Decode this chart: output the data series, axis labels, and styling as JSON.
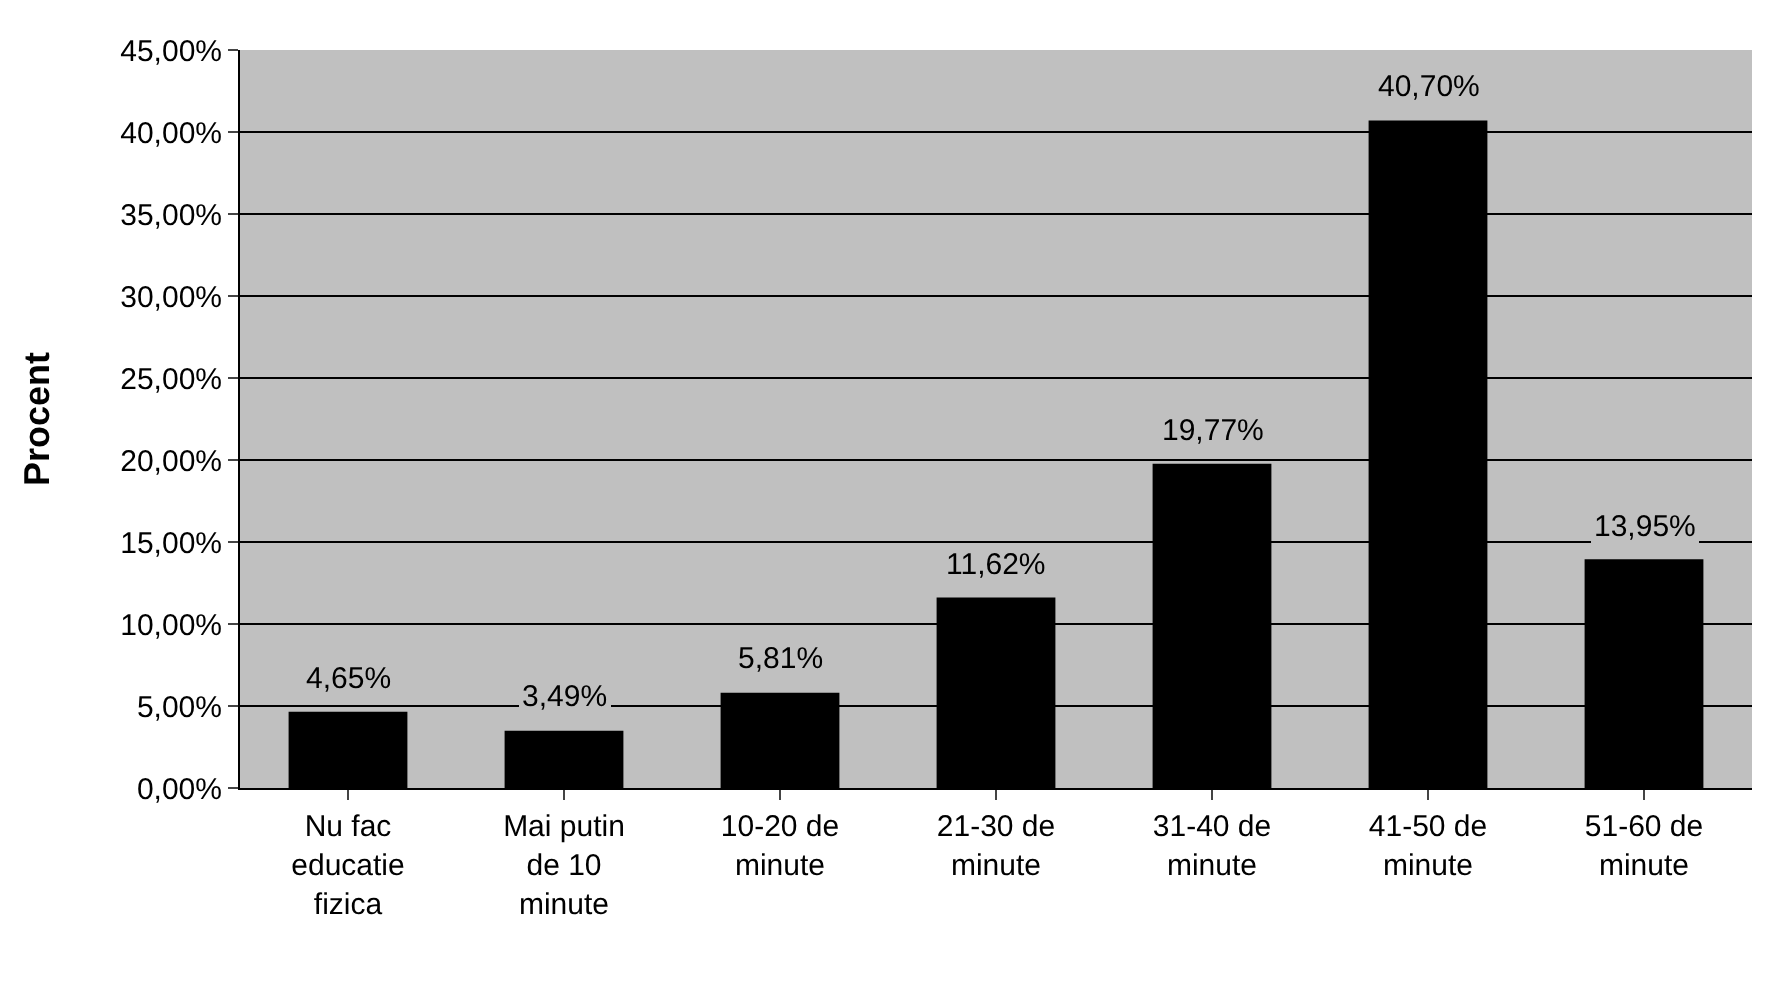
{
  "chart_data": {
    "type": "bar",
    "ylabel": "Procent",
    "categories": [
      "Nu fac educatie fizica",
      "Mai putin de 10 minute",
      "10-20 de minute",
      "21-30 de minute",
      "31-40 de minute",
      "41-50 de minute",
      "51-60 de minute"
    ],
    "values": [
      4.65,
      3.49,
      5.81,
      11.62,
      19.77,
      40.7,
      13.95
    ],
    "value_labels": [
      "4,65%",
      "3,49%",
      "5,81%",
      "11,62%",
      "19,77%",
      "40,70%",
      "13,95%"
    ],
    "color": "#000000",
    "ylim": [
      0,
      45
    ],
    "yticks": [
      {
        "value": 0,
        "label": "0,00%"
      },
      {
        "value": 5,
        "label": "5,00%"
      },
      {
        "value": 10,
        "label": "10,00%"
      },
      {
        "value": 15,
        "label": "15,00%"
      },
      {
        "value": 20,
        "label": "20,00%"
      },
      {
        "value": 25,
        "label": "25,00%"
      },
      {
        "value": 30,
        "label": "30,00%"
      },
      {
        "value": 35,
        "label": "35,00%"
      },
      {
        "value": 40,
        "label": "40,00%"
      },
      {
        "value": 45,
        "label": "45,00%"
      }
    ],
    "grid": "y",
    "legend": false
  }
}
